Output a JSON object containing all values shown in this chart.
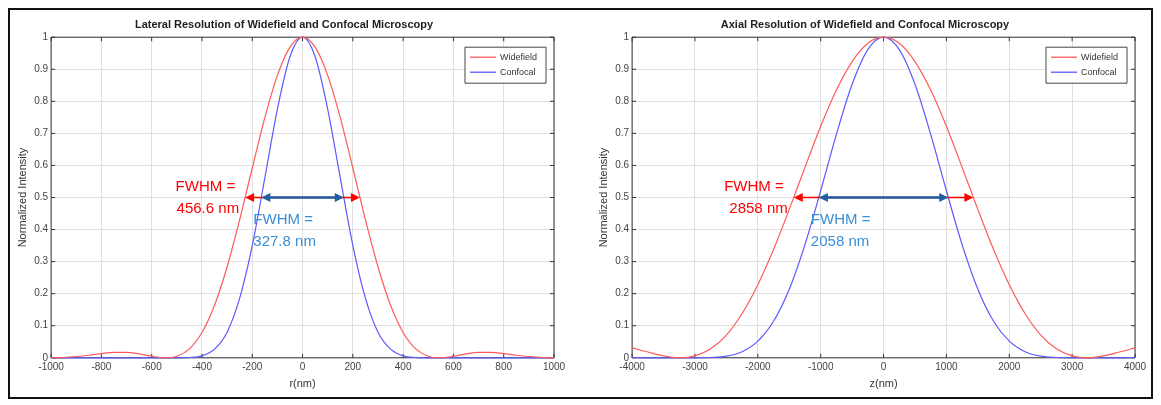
{
  "chart_data": [
    {
      "type": "line",
      "title": "Lateral Resolution of Widefield and Confocal Microscopy",
      "xlabel": "r(nm)",
      "ylabel": "Normalized Intensity",
      "x": [
        -1000,
        -950,
        -900,
        -850,
        -800,
        -750,
        -700,
        -650,
        -600,
        -550,
        -500,
        -450,
        -400,
        -350,
        -300,
        -250,
        -200,
        -150,
        -100,
        -50,
        0,
        50,
        100,
        150,
        200,
        250,
        300,
        350,
        400,
        450,
        500,
        550,
        600,
        650,
        700,
        750,
        800,
        850,
        900,
        950,
        1000
      ],
      "series": [
        {
          "name": "Widefield",
          "color": "#ff5a5a",
          "values": [
            0,
            0.001,
            0.004,
            0.008,
            0.013,
            0.017,
            0.017,
            0.012,
            0.005,
            0,
            0.005,
            0.028,
            0.079,
            0.164,
            0.284,
            0.431,
            0.592,
            0.749,
            0.881,
            0.969,
            1,
            0.969,
            0.881,
            0.749,
            0.592,
            0.431,
            0.284,
            0.164,
            0.079,
            0.028,
            0.005,
            0,
            0.005,
            0.012,
            0.017,
            0.017,
            0.013,
            0.008,
            0.004,
            0.001,
            0
          ]
        },
        {
          "name": "Confocal",
          "color": "#5a5aff",
          "values": [
            0,
            0,
            0,
            0,
            0,
            0,
            0,
            0,
            0,
            0,
            0,
            0.001,
            0.006,
            0.027,
            0.08,
            0.186,
            0.35,
            0.561,
            0.776,
            0.939,
            1,
            0.939,
            0.776,
            0.561,
            0.35,
            0.186,
            0.08,
            0.027,
            0.006,
            0.001,
            0,
            0,
            0,
            0,
            0,
            0,
            0,
            0,
            0,
            0,
            0
          ]
        }
      ],
      "annotations": [
        {
          "text": "FWHM =\n456.6 nm",
          "x": -228.3,
          "y": 0.5
        },
        {
          "text": "FWHM =\n327.8 nm",
          "x": 163.9,
          "y": 0.5
        }
      ],
      "xlim": [
        -1000,
        1000
      ],
      "xticks": [
        -1000,
        -800,
        -600,
        -400,
        -200,
        0,
        200,
        400,
        600,
        800,
        1000
      ],
      "ylim": [
        0,
        1
      ],
      "yticks": [
        0,
        0.1,
        0.2,
        0.3,
        0.4,
        0.5,
        0.6,
        0.7,
        0.8,
        0.9,
        1
      ],
      "grid": true,
      "legend": "top right",
      "marker": "none",
      "line_style": "solid"
    },
    {
      "type": "line",
      "title": "Axial Resolution of Widefield and Confocal Microscopy",
      "xlabel": "z(nm)",
      "ylabel": "Normalized Intensity",
      "x": [
        -4000,
        -3750,
        -3500,
        -3250,
        -3000,
        -2750,
        -2500,
        -2250,
        -2000,
        -1750,
        -1500,
        -1250,
        -1000,
        -750,
        -500,
        -250,
        0,
        250,
        500,
        750,
        1000,
        1250,
        1500,
        1750,
        2000,
        2250,
        2500,
        2750,
        3000,
        3250,
        3500,
        3750,
        4000
      ],
      "series": [
        {
          "name": "Widefield",
          "color": "#ff5a5a",
          "values": [
            0.031,
            0.018,
            0.006,
            0,
            0.006,
            0.028,
            0.071,
            0.138,
            0.228,
            0.338,
            0.463,
            0.594,
            0.722,
            0.835,
            0.924,
            0.981,
            1,
            0.981,
            0.924,
            0.835,
            0.722,
            0.594,
            0.463,
            0.338,
            0.228,
            0.138,
            0.071,
            0.028,
            0.006,
            0,
            0.006,
            0.018,
            0.031
          ]
        },
        {
          "name": "Confocal",
          "color": "#5a5aff",
          "values": [
            0.001,
            0,
            0,
            0,
            0,
            0.001,
            0.005,
            0.019,
            0.052,
            0.114,
            0.214,
            0.353,
            0.521,
            0.697,
            0.853,
            0.961,
            1,
            0.961,
            0.853,
            0.697,
            0.521,
            0.353,
            0.214,
            0.114,
            0.052,
            0.019,
            0.005,
            0.001,
            0,
            0,
            0,
            0,
            0.001
          ]
        }
      ],
      "annotations": [
        {
          "text": "FWHM =\n2858 nm",
          "x": -1429,
          "y": 0.5
        },
        {
          "text": "FWHM =\n2058 nm",
          "x": 1029,
          "y": 0.5
        }
      ],
      "xlim": [
        -4000,
        4000
      ],
      "xticks": [
        -4000,
        -3000,
        -2000,
        -1000,
        0,
        1000,
        2000,
        3000,
        4000
      ],
      "ylim": [
        0,
        1
      ],
      "yticks": [
        0,
        0.1,
        0.2,
        0.3,
        0.4,
        0.5,
        0.6,
        0.7,
        0.8,
        0.9,
        1
      ],
      "grid": true,
      "legend": "top right",
      "marker": "none",
      "line_style": "solid"
    }
  ]
}
